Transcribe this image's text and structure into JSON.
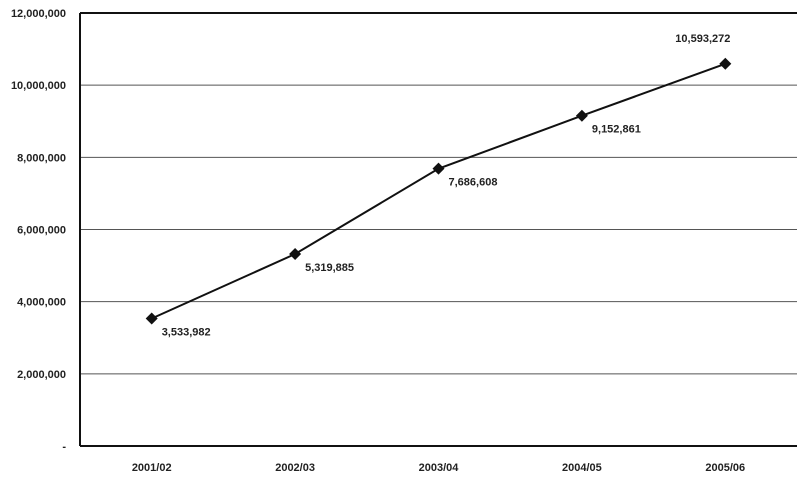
{
  "chart_data": {
    "type": "line",
    "title": "",
    "xlabel": "",
    "ylabel": "",
    "categories": [
      "2001/02",
      "2002/03",
      "2003/04",
      "2004/05",
      "2005/06"
    ],
    "series": [
      {
        "values": [
          3533982,
          5319885,
          7686608,
          9152861,
          10593272
        ],
        "labels": [
          "3,533,982",
          "5,319,885",
          "7,686,608",
          "9,152,861",
          "10,593,272"
        ],
        "color": "#111111",
        "marker": "diamond"
      }
    ],
    "ylim": [
      0,
      12000000
    ],
    "yticks": [
      {
        "value": 0,
        "label": "-"
      },
      {
        "value": 2000000,
        "label": "2,000,000"
      },
      {
        "value": 4000000,
        "label": "4,000,000"
      },
      {
        "value": 6000000,
        "label": "6,000,000"
      },
      {
        "value": 8000000,
        "label": "8,000,000"
      },
      {
        "value": 10000000,
        "label": "10,000,000"
      },
      {
        "value": 12000000,
        "label": "12,000,000"
      }
    ],
    "grid": true,
    "legend": "none"
  }
}
